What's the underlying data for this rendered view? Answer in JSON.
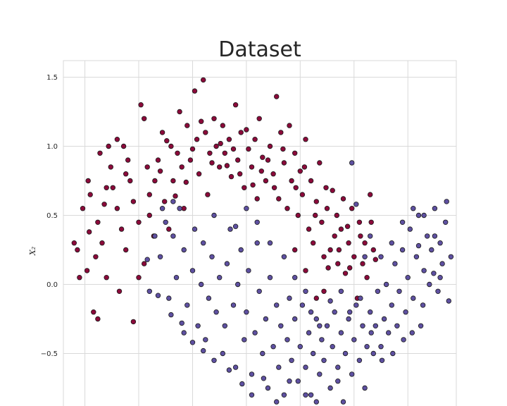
{
  "chart_data": {
    "type": "scatter",
    "title": "Dataset",
    "xlabel": "",
    "ylabel": "X₂",
    "xlim": [
      -1.2,
      2.45
    ],
    "ylim": [
      -0.88,
      1.62
    ],
    "xticks": [
      -1.0,
      -0.5,
      0.0,
      0.5,
      1.0,
      1.5,
      2.0
    ],
    "yticks": [
      -0.5,
      0.0,
      0.5,
      1.0,
      1.5
    ],
    "ytick_labels": [
      "−0.5",
      "0.0",
      "0.5",
      "1.0",
      "1.5"
    ],
    "grid": true,
    "legend": "none",
    "series": [
      {
        "color": "#8b0a3a",
        "points": [
          [
            -1.1,
            0.3
          ],
          [
            -1.05,
            0.05
          ],
          [
            -0.98,
            0.1
          ],
          [
            -1.02,
            0.55
          ],
          [
            -0.95,
            0.65
          ],
          [
            -0.97,
            0.75
          ],
          [
            -0.88,
            0.45
          ],
          [
            -0.84,
            0.3
          ],
          [
            -0.8,
            0.05
          ],
          [
            -0.86,
            0.95
          ],
          [
            -0.76,
            0.85
          ],
          [
            -0.7,
            1.05
          ],
          [
            -0.74,
            0.7
          ],
          [
            -0.7,
            0.55
          ],
          [
            -0.66,
            0.4
          ],
          [
            -0.62,
            0.25
          ],
          [
            -0.6,
            0.9
          ],
          [
            -0.58,
            0.75
          ],
          [
            -0.55,
            0.6
          ],
          [
            -0.5,
            0.45
          ],
          [
            -0.48,
            1.3
          ],
          [
            -0.45,
            1.2
          ],
          [
            -0.42,
            0.85
          ],
          [
            -0.4,
            0.65
          ],
          [
            -0.36,
            0.35
          ],
          [
            -0.32,
            0.9
          ],
          [
            -0.28,
            1.1
          ],
          [
            -0.26,
            0.6
          ],
          [
            -0.22,
            0.4
          ],
          [
            -0.2,
            1.0
          ],
          [
            -0.18,
            0.75
          ],
          [
            -0.14,
            0.95
          ],
          [
            -0.12,
            1.25
          ],
          [
            -0.1,
            0.85
          ],
          [
            -0.08,
            0.55
          ],
          [
            -0.05,
            1.15
          ],
          [
            -0.02,
            0.9
          ],
          [
            0.02,
            1.4
          ],
          [
            0.04,
            1.05
          ],
          [
            0.06,
            0.8
          ],
          [
            0.1,
            1.48
          ],
          [
            0.12,
            1.1
          ],
          [
            0.14,
            0.65
          ],
          [
            0.16,
            0.95
          ],
          [
            0.2,
            1.2
          ],
          [
            0.22,
            1.0
          ],
          [
            0.25,
            0.85
          ],
          [
            0.28,
            1.15
          ],
          [
            0.3,
            0.95
          ],
          [
            0.34,
            1.05
          ],
          [
            0.36,
            0.78
          ],
          [
            0.4,
            1.3
          ],
          [
            0.42,
            0.9
          ],
          [
            0.45,
            1.1
          ],
          [
            0.48,
            0.7
          ],
          [
            0.52,
            0.98
          ],
          [
            0.55,
            0.85
          ],
          [
            0.58,
            1.05
          ],
          [
            0.6,
            0.62
          ],
          [
            0.62,
            1.2
          ],
          [
            0.65,
            0.92
          ],
          [
            0.68,
            0.75
          ],
          [
            0.72,
            1.0
          ],
          [
            0.75,
            0.8
          ],
          [
            0.78,
            1.36
          ],
          [
            0.8,
            0.62
          ],
          [
            0.82,
            1.1
          ],
          [
            0.85,
            0.88
          ],
          [
            0.88,
            0.55
          ],
          [
            0.9,
            1.15
          ],
          [
            0.92,
            0.75
          ],
          [
            0.95,
            0.95
          ],
          [
            0.98,
            0.5
          ],
          [
            1.0,
            0.82
          ],
          [
            1.02,
            0.65
          ],
          [
            1.05,
            1.05
          ],
          [
            1.08,
            0.4
          ],
          [
            1.1,
            0.75
          ],
          [
            1.12,
            0.3
          ],
          [
            1.15,
            0.6
          ],
          [
            1.18,
            0.88
          ],
          [
            1.2,
            0.45
          ],
          [
            1.22,
            0.2
          ],
          [
            1.25,
            0.55
          ],
          [
            1.28,
            0.25
          ],
          [
            1.3,
            0.68
          ],
          [
            1.32,
            0.35
          ],
          [
            1.35,
            0.15
          ],
          [
            1.38,
            0.4
          ],
          [
            1.4,
            0.62
          ],
          [
            1.42,
            0.08
          ],
          [
            1.45,
            0.3
          ],
          [
            1.48,
            0.55
          ],
          [
            1.5,
            0.2
          ],
          [
            1.53,
            -0.1
          ],
          [
            1.55,
            0.45
          ],
          [
            1.58,
            0.15
          ],
          [
            1.6,
            0.3
          ],
          [
            1.62,
            0.05
          ],
          [
            1.65,
            0.65
          ],
          [
            1.68,
            0.25
          ],
          [
            1.7,
            0.18
          ],
          [
            1.15,
            -0.1
          ],
          [
            1.22,
            -0.05
          ],
          [
            1.05,
            0.1
          ],
          [
            0.95,
            0.25
          ],
          [
            -0.92,
            -0.2
          ],
          [
            -0.88,
            -0.25
          ],
          [
            -0.68,
            -0.05
          ],
          [
            -0.55,
            -0.27
          ],
          [
            -0.5,
            0.05
          ],
          [
            -0.45,
            0.15
          ],
          [
            -0.4,
            0.5
          ],
          [
            -0.35,
            0.75
          ],
          [
            -0.62,
            0.8
          ],
          [
            -0.8,
            0.7
          ],
          [
            -0.9,
            0.2
          ],
          [
            -1.07,
            0.25
          ],
          [
            -0.78,
            1.0
          ],
          [
            -0.64,
            1.0
          ],
          [
            -0.3,
            0.82
          ],
          [
            -0.24,
            1.04
          ],
          [
            -0.16,
            0.64
          ],
          [
            -0.06,
            0.74
          ],
          [
            0.0,
            0.98
          ],
          [
            0.08,
            1.18
          ],
          [
            0.18,
            0.88
          ],
          [
            0.26,
            1.02
          ],
          [
            0.32,
            0.86
          ],
          [
            0.38,
            0.98
          ],
          [
            0.44,
            0.8
          ],
          [
            0.5,
            1.12
          ],
          [
            0.56,
            0.72
          ],
          [
            0.64,
            0.82
          ],
          [
            0.7,
            0.9
          ],
          [
            0.76,
            0.7
          ],
          [
            0.84,
            0.98
          ],
          [
            0.96,
            0.7
          ],
          [
            1.04,
            0.85
          ],
          [
            1.14,
            0.5
          ],
          [
            1.24,
            0.7
          ],
          [
            1.34,
            0.5
          ],
          [
            1.44,
            0.42
          ],
          [
            1.56,
            0.35
          ],
          [
            1.26,
            0.12
          ],
          [
            1.36,
            0.25
          ],
          [
            1.46,
            0.12
          ],
          [
            1.66,
            0.45
          ],
          [
            -0.96,
            0.38
          ],
          [
            -0.82,
            0.58
          ]
        ]
      },
      {
        "color": "#5e50a1",
        "points": [
          [
            -0.4,
            -0.05
          ],
          [
            -0.3,
            0.2
          ],
          [
            -0.25,
            0.45
          ],
          [
            -0.22,
            -0.1
          ],
          [
            -0.18,
            0.35
          ],
          [
            -0.15,
            0.05
          ],
          [
            -0.12,
            0.55
          ],
          [
            -0.1,
            -0.28
          ],
          [
            -0.08,
            0.25
          ],
          [
            -0.05,
            -0.15
          ],
          [
            0.0,
            0.1
          ],
          [
            0.02,
            0.4
          ],
          [
            0.05,
            -0.3
          ],
          [
            0.08,
            0.0
          ],
          [
            0.1,
            0.3
          ],
          [
            0.12,
            -0.4
          ],
          [
            0.15,
            -0.1
          ],
          [
            0.18,
            0.2
          ],
          [
            0.2,
            0.5
          ],
          [
            0.22,
            -0.2
          ],
          [
            0.25,
            0.05
          ],
          [
            0.28,
            -0.5
          ],
          [
            0.3,
            -0.3
          ],
          [
            0.32,
            0.15
          ],
          [
            0.35,
            0.4
          ],
          [
            0.38,
            -0.15
          ],
          [
            0.4,
            -0.6
          ],
          [
            0.42,
            0.0
          ],
          [
            0.45,
            0.25
          ],
          [
            0.48,
            -0.4
          ],
          [
            0.5,
            -0.2
          ],
          [
            0.52,
            0.1
          ],
          [
            0.55,
            -0.65
          ],
          [
            0.58,
            -0.35
          ],
          [
            0.6,
            0.3
          ],
          [
            0.62,
            -0.05
          ],
          [
            0.65,
            -0.5
          ],
          [
            0.68,
            -0.25
          ],
          [
            0.7,
            -0.75
          ],
          [
            0.72,
            0.05
          ],
          [
            0.75,
            -0.45
          ],
          [
            0.78,
            -0.15
          ],
          [
            0.8,
            -0.6
          ],
          [
            0.82,
            -0.3
          ],
          [
            0.85,
            -0.8
          ],
          [
            0.88,
            -0.4
          ],
          [
            0.9,
            -0.1
          ],
          [
            0.92,
            -0.55
          ],
          [
            0.95,
            -0.25
          ],
          [
            0.98,
            -0.7
          ],
          [
            1.0,
            -0.45
          ],
          [
            1.02,
            -0.15
          ],
          [
            1.05,
            -0.6
          ],
          [
            1.08,
            -0.35
          ],
          [
            1.1,
            -0.8
          ],
          [
            1.12,
            -0.5
          ],
          [
            1.15,
            -0.25
          ],
          [
            1.18,
            -0.65
          ],
          [
            1.2,
            -0.4
          ],
          [
            1.22,
            -0.55
          ],
          [
            1.25,
            -0.3
          ],
          [
            1.28,
            -0.75
          ],
          [
            1.3,
            -0.45
          ],
          [
            1.32,
            -0.2
          ],
          [
            1.35,
            -0.6
          ],
          [
            1.38,
            -0.35
          ],
          [
            1.4,
            -0.85
          ],
          [
            1.42,
            -0.5
          ],
          [
            1.45,
            -0.25
          ],
          [
            1.48,
            -0.65
          ],
          [
            1.5,
            -0.4
          ],
          [
            1.52,
            -0.15
          ],
          [
            1.55,
            -0.55
          ],
          [
            1.58,
            -0.3
          ],
          [
            1.6,
            -0.75
          ],
          [
            1.62,
            -0.45
          ],
          [
            1.65,
            -0.2
          ],
          [
            1.68,
            -0.5
          ],
          [
            1.7,
            -0.3
          ],
          [
            1.72,
            -0.05
          ],
          [
            1.75,
            -0.45
          ],
          [
            1.78,
            -0.25
          ],
          [
            1.8,
            0.0
          ],
          [
            1.82,
            -0.35
          ],
          [
            1.85,
            -0.15
          ],
          [
            1.88,
            0.15
          ],
          [
            1.9,
            -0.3
          ],
          [
            1.92,
            -0.05
          ],
          [
            1.95,
            0.25
          ],
          [
            1.98,
            -0.2
          ],
          [
            2.0,
            0.05
          ],
          [
            2.02,
            0.4
          ],
          [
            2.05,
            -0.1
          ],
          [
            2.08,
            0.2
          ],
          [
            2.1,
            0.5
          ],
          [
            2.12,
            -0.3
          ],
          [
            2.15,
            0.1
          ],
          [
            2.18,
            0.35
          ],
          [
            2.2,
            0.0
          ],
          [
            2.22,
            0.25
          ],
          [
            2.25,
            0.55
          ],
          [
            2.28,
            -0.05
          ],
          [
            2.3,
            0.3
          ],
          [
            2.32,
            0.15
          ],
          [
            2.35,
            0.45
          ],
          [
            2.38,
            -0.12
          ],
          [
            2.4,
            0.2
          ],
          [
            2.36,
            0.6
          ],
          [
            2.3,
            0.05
          ],
          [
            2.25,
            0.35
          ],
          [
            1.48,
            0.88
          ],
          [
            1.52,
            0.58
          ],
          [
            1.6,
            0.2
          ],
          [
            1.65,
            0.35
          ],
          [
            1.75,
            0.2
          ],
          [
            1.85,
            0.3
          ],
          [
            1.95,
            0.45
          ],
          [
            2.05,
            0.55
          ],
          [
            2.15,
            0.5
          ],
          [
            2.1,
            0.28
          ],
          [
            1.25,
            -0.9
          ],
          [
            1.35,
            -0.7
          ],
          [
            1.15,
            -0.85
          ],
          [
            1.05,
            -0.8
          ],
          [
            0.9,
            -0.7
          ],
          [
            0.78,
            -0.85
          ],
          [
            0.66,
            -0.68
          ],
          [
            0.55,
            -0.8
          ],
          [
            0.46,
            -0.72
          ],
          [
            0.34,
            -0.62
          ],
          [
            0.2,
            -0.55
          ],
          [
            0.1,
            -0.48
          ],
          [
            0.0,
            -0.42
          ],
          [
            -0.08,
            -0.35
          ],
          [
            -0.2,
            -0.22
          ],
          [
            -0.32,
            -0.08
          ],
          [
            -0.42,
            0.18
          ],
          [
            -0.35,
            0.35
          ],
          [
            -0.28,
            0.55
          ],
          [
            -0.18,
            0.6
          ],
          [
            0.4,
            0.42
          ],
          [
            0.5,
            0.55
          ],
          [
            0.6,
            0.45
          ],
          [
            0.72,
            0.3
          ],
          [
            0.85,
            0.2
          ],
          [
            0.95,
            0.05
          ],
          [
            1.05,
            -0.05
          ],
          [
            1.1,
            -0.2
          ],
          [
            1.18,
            -0.3
          ],
          [
            1.28,
            -0.12
          ],
          [
            1.38,
            -0.05
          ],
          [
            1.46,
            -0.2
          ],
          [
            1.56,
            -0.1
          ],
          [
            1.66,
            -0.35
          ],
          [
            1.76,
            -0.55
          ],
          [
            1.86,
            -0.5
          ],
          [
            1.96,
            -0.4
          ],
          [
            2.04,
            -0.35
          ],
          [
            2.14,
            -0.15
          ],
          [
            2.24,
            0.08
          ]
        ]
      }
    ]
  }
}
